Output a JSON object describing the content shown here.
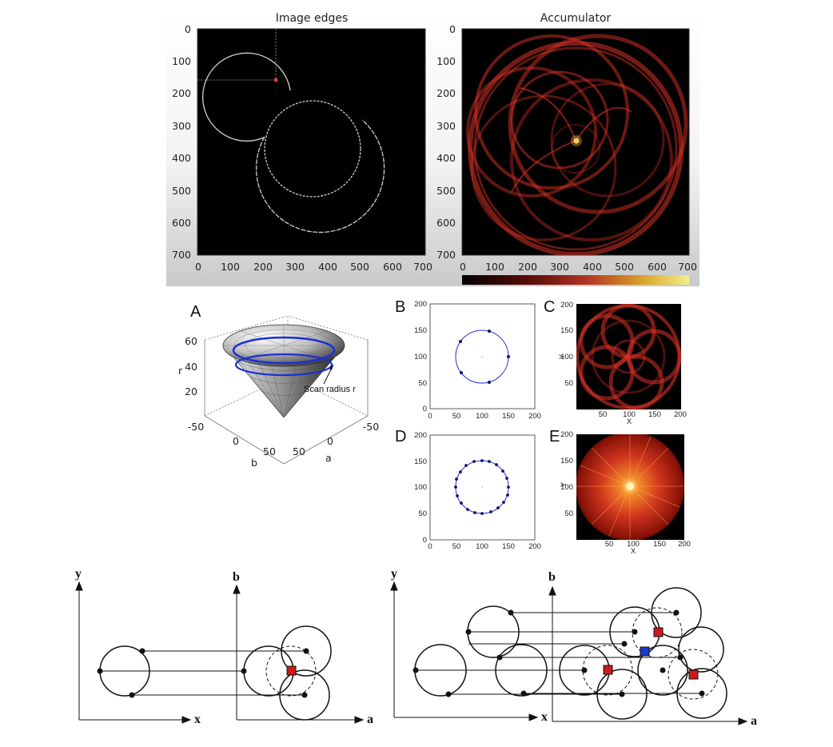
{
  "top_figure": {
    "left_title": "Image edges",
    "right_title": "Accumulator",
    "axis_ticks": [
      "0",
      "100",
      "200",
      "300",
      "400",
      "500",
      "600",
      "700"
    ],
    "colors": {
      "edge": "#cfcfcf",
      "accum": "#d83226",
      "peak": "#ffe27a",
      "bg": "#000000"
    }
  },
  "cone_panel": {
    "letter": "A",
    "r_ticks": [
      "20",
      "40",
      "60"
    ],
    "b_ticks": [
      "-50",
      "0",
      "50"
    ],
    "a_ticks": [
      "-50",
      "0",
      "50"
    ],
    "r_label": "r",
    "b_label": "b",
    "a_label": "a",
    "annotation": "Scan radius r",
    "colors": {
      "ring": "#1a2fd6"
    }
  },
  "small_panels": {
    "B": {
      "letter": "B"
    },
    "C": {
      "letter": "C"
    },
    "D": {
      "letter": "D"
    },
    "E": {
      "letter": "E"
    },
    "ticks": [
      "0",
      "50",
      "100",
      "150",
      "200"
    ],
    "heat_ticks": [
      "50",
      "100",
      "150",
      "200"
    ],
    "x_label": "X",
    "y_label": "Y",
    "colors": {
      "circle": "#2233cc",
      "point": "#111166"
    }
  },
  "hough_diagrams": {
    "left": {
      "y_label": "y",
      "x_label": "x",
      "b_label": "b",
      "a_label": "a"
    },
    "right": {
      "y_label": "y",
      "x_label": "x",
      "b_label": "b",
      "a_label": "a"
    },
    "colors": {
      "red": "#cc1b1b",
      "blue": "#1b3bcc"
    }
  }
}
